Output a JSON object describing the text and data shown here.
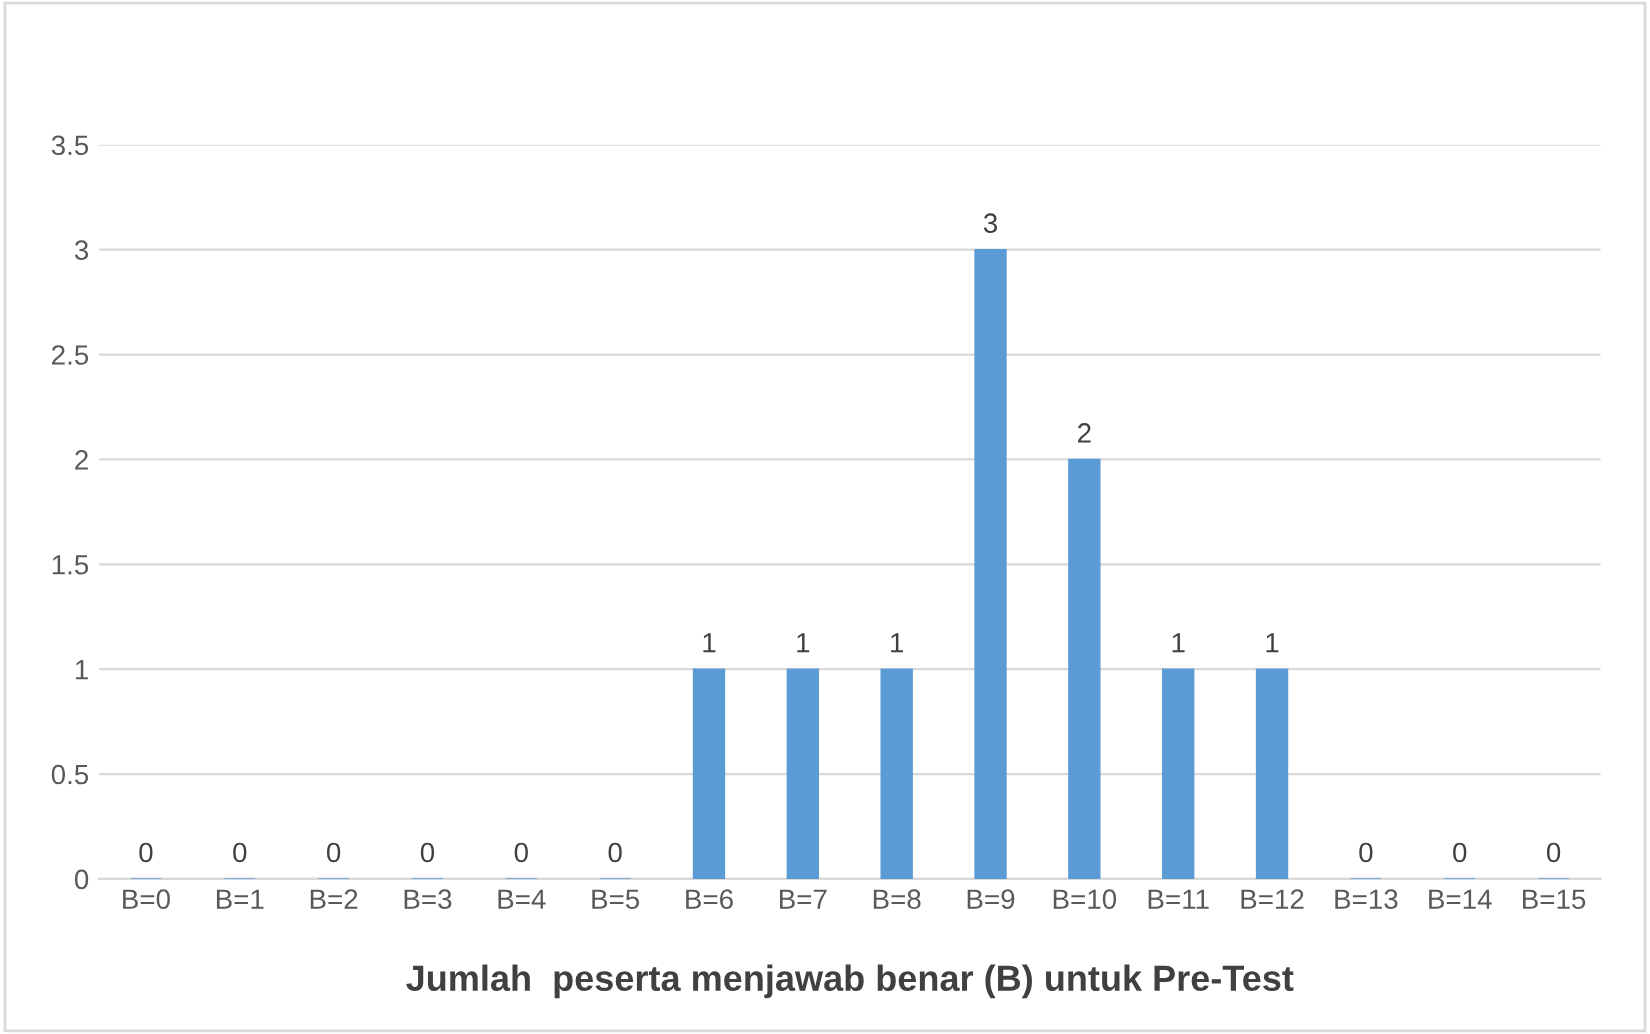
{
  "chart_data": {
    "type": "bar",
    "xlabel": "Jumlah  peserta menjawab benar (B) untuk Pre-Test",
    "categories": [
      "B=0",
      "B=1",
      "B=2",
      "B=3",
      "B=4",
      "B=5",
      "B=6",
      "B=7",
      "B=8",
      "B=9",
      "B=10",
      "B=11",
      "B=12",
      "B=13",
      "B=14",
      "B=15"
    ],
    "values": [
      0,
      0,
      0,
      0,
      0,
      0,
      1,
      1,
      1,
      3,
      2,
      1,
      1,
      0,
      0,
      0
    ],
    "color": "#5b9bd5",
    "ylim": [
      0,
      3.5
    ],
    "yticks": [
      0,
      0.5,
      1,
      1.5,
      2,
      2.5,
      3,
      3.5
    ],
    "grid": "y",
    "data_labels": true
  }
}
